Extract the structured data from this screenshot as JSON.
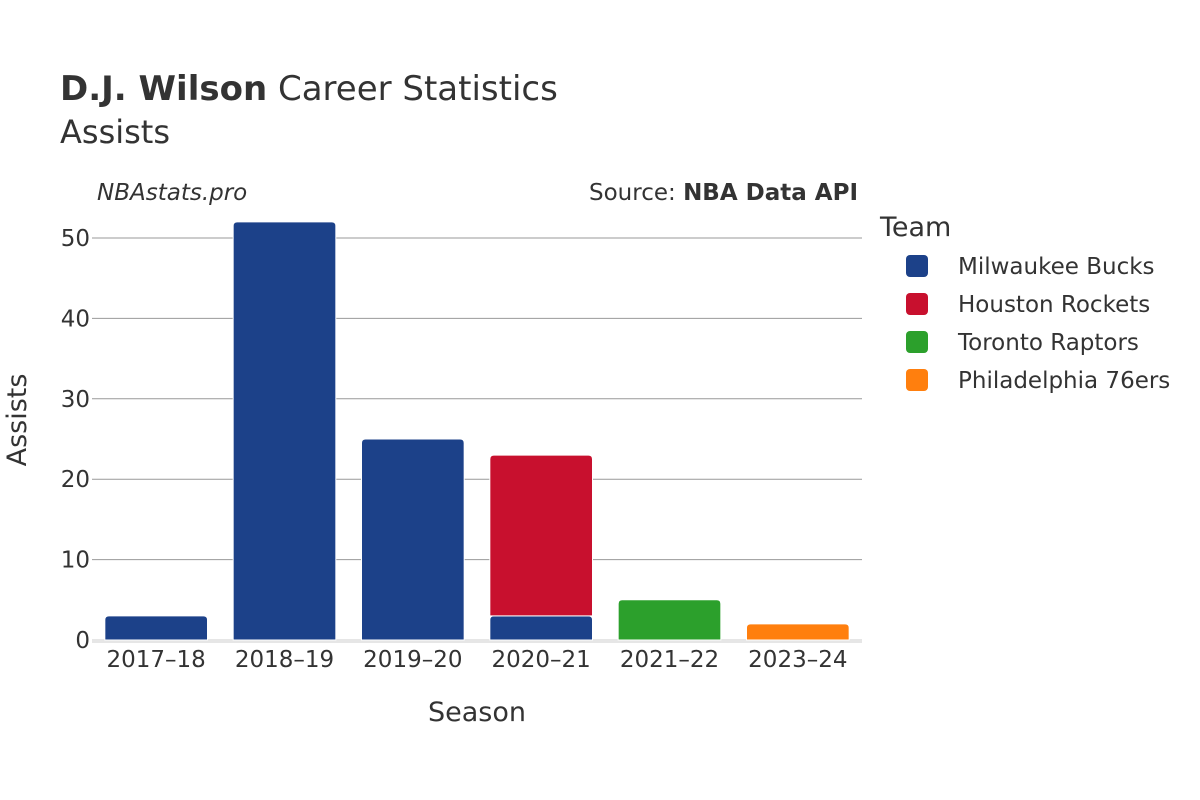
{
  "header": {
    "title_bold": "D.J. Wilson",
    "title_rest": " Career Statistics",
    "subtitle": "Assists"
  },
  "credit": "NBAstats.pro",
  "source": {
    "prefix": "Source: ",
    "name": "NBA Data API"
  },
  "chart_data": {
    "type": "bar",
    "stacked": true,
    "title": "D.J. Wilson Career Statistics",
    "subtitle": "Assists",
    "xlabel": "Season",
    "ylabel": "Assists",
    "categories": [
      "2017–18",
      "2018–19",
      "2019–20",
      "2020–21",
      "2021–22",
      "2023–24"
    ],
    "ylim": [
      0,
      53
    ],
    "yticks": [
      0,
      10,
      20,
      30,
      40,
      50
    ],
    "grid": true,
    "legend_title": "Team",
    "legend_position": "right",
    "series": [
      {
        "name": "Milwaukee Bucks",
        "color": "#1c4189",
        "values": [
          3,
          52,
          25,
          3,
          0,
          0
        ]
      },
      {
        "name": "Houston Rockets",
        "color": "#c8102e",
        "values": [
          0,
          0,
          0,
          20,
          0,
          0
        ]
      },
      {
        "name": "Toronto Raptors",
        "color": "#2ca02c",
        "values": [
          0,
          0,
          0,
          0,
          5,
          0
        ]
      },
      {
        "name": "Philadelphia 76ers",
        "color": "#ff7f0e",
        "values": [
          0,
          0,
          0,
          0,
          0,
          2
        ]
      }
    ]
  }
}
